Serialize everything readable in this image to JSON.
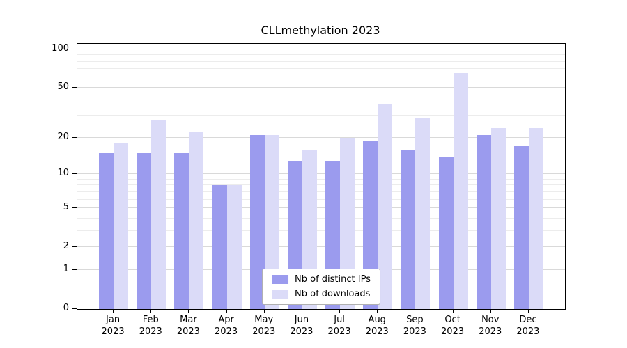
{
  "title": "CLLmethylation 2023",
  "colors": {
    "ips_bar": "#9b9bee",
    "downloads_bar": "#dbdbf8",
    "grid_major": "#d9d9d9",
    "grid_minor": "#ececec",
    "axis": "#000000"
  },
  "chart_data": {
    "type": "bar",
    "title": "CLLmethylation 2023",
    "scale": "log1p",
    "grid": true,
    "legend_position": "bottom-center",
    "categories": [
      "Jan 2023",
      "Feb 2023",
      "Mar 2023",
      "Apr 2023",
      "May 2023",
      "Jun 2023",
      "Jul 2023",
      "Aug 2023",
      "Sep 2023",
      "Oct 2023",
      "Nov 2023",
      "Dec 2023"
    ],
    "series": [
      {
        "name": "Nb of distinct IPs",
        "color": "#9b9bee",
        "values": [
          15,
          15,
          15,
          8,
          21,
          13,
          13,
          19,
          16,
          14,
          21,
          17
        ]
      },
      {
        "name": "Nb of downloads",
        "color": "#dbdbf8",
        "values": [
          18,
          28,
          22,
          8,
          21,
          16,
          20,
          37,
          29,
          65,
          24,
          24
        ]
      }
    ],
    "ylim": [
      0,
      100
    ],
    "yticks": [
      0,
      1,
      2,
      5,
      10,
      20,
      50,
      100
    ],
    "minor_gridlines": [
      3,
      4,
      6,
      7,
      8,
      9,
      30,
      40,
      60,
      70,
      80,
      90
    ],
    "xlabel": "",
    "ylabel": ""
  }
}
